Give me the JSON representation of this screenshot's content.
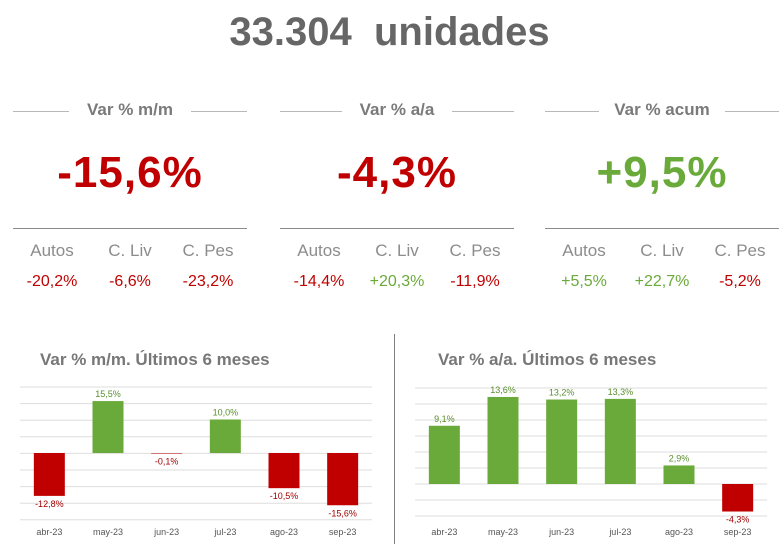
{
  "header": {
    "total_value": "33.304",
    "total_unit": "unidades"
  },
  "colors": {
    "negative": "#c00000",
    "positive": "#6aaa3a",
    "neutral": "#7a7a7a"
  },
  "kpis": [
    {
      "label": "Var % m/m",
      "value": "-15,6%",
      "sign": "neg",
      "subs": [
        {
          "label": "Autos",
          "value": "-20,2%",
          "sign": "neg"
        },
        {
          "label": "C. Liv",
          "value": "-6,6%",
          "sign": "neg"
        },
        {
          "label": "C. Pes",
          "value": "-23,2%",
          "sign": "neg"
        }
      ]
    },
    {
      "label": "Var % a/a",
      "value": "-4,3%",
      "sign": "neg",
      "subs": [
        {
          "label": "Autos",
          "value": "-14,4%",
          "sign": "neg"
        },
        {
          "label": "C. Liv",
          "value": "+20,3%",
          "sign": "pos"
        },
        {
          "label": "C. Pes",
          "value": "-11,9%",
          "sign": "neg"
        }
      ]
    },
    {
      "label": "Var % acum",
      "value": "+9,5%",
      "sign": "pos",
      "subs": [
        {
          "label": "Autos",
          "value": "+5,5%",
          "sign": "pos"
        },
        {
          "label": "C. Liv",
          "value": "+22,7%",
          "sign": "pos"
        },
        {
          "label": "C. Pes",
          "value": "-5,2%",
          "sign": "neg"
        }
      ]
    }
  ],
  "chart_data": [
    {
      "type": "bar",
      "title": "Var % m/m. Últimos 6 meses",
      "categories": [
        "abr-23",
        "may-23",
        "jun-23",
        "jul-23",
        "ago-23",
        "sep-23"
      ],
      "values": [
        -12.8,
        15.5,
        -0.1,
        10.0,
        -10.5,
        -15.6
      ],
      "labels": [
        "-12,8%",
        "15,5%",
        "-0,1%",
        "10,0%",
        "-10,5%",
        "-15,6%"
      ],
      "ylim": [
        -20,
        20
      ],
      "grid": true
    },
    {
      "type": "bar",
      "title": "Var % a/a. Últimos 6 meses",
      "categories": [
        "abr-23",
        "may-23",
        "jun-23",
        "jul-23",
        "ago-23",
        "sep-23"
      ],
      "values": [
        9.1,
        13.6,
        13.2,
        13.3,
        2.9,
        -4.3
      ],
      "labels": [
        "9,1%",
        "13,6%",
        "13,2%",
        "13,3%",
        "2,9%",
        "-4,3%"
      ],
      "ylim": [
        -6,
        16
      ],
      "grid": true
    }
  ]
}
